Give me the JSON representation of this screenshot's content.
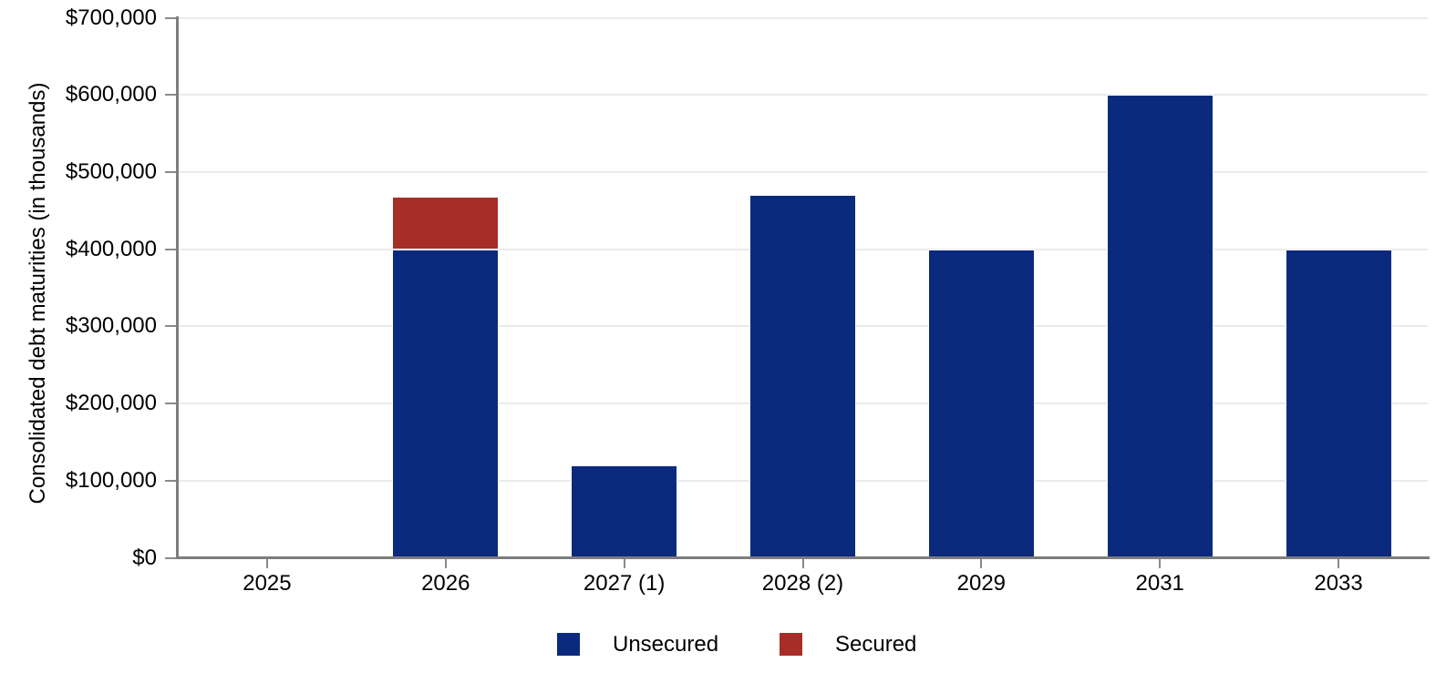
{
  "chart_data": {
    "type": "bar",
    "stacked": true,
    "title": "",
    "xlabel": "",
    "ylabel": "Consolidated debt maturities (in thousands)",
    "categories": [
      "2025",
      "2026",
      "2027 (1)",
      "2028 (2)",
      "2029",
      "2031",
      "2033"
    ],
    "series": [
      {
        "name": "Unsecured",
        "color": "#0b2a7e",
        "values": [
          0,
          400000,
          120000,
          470000,
          400000,
          600000,
          400000
        ]
      },
      {
        "name": "Secured",
        "color": "#a72d29",
        "values": [
          0,
          68000,
          0,
          0,
          0,
          0,
          0
        ]
      }
    ],
    "ylim": [
      0,
      700000
    ],
    "ytick_step": 100000,
    "ytick_labels": [
      "$0",
      "$100,000",
      "$200,000",
      "$300,000",
      "$400,000",
      "$500,000",
      "$600,000",
      "$700,000"
    ],
    "grid": true,
    "legend_position": "bottom",
    "legend": [
      "Unsecured",
      "Secured"
    ]
  }
}
